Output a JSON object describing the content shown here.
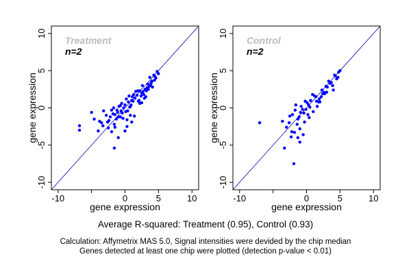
{
  "chart_data": [
    {
      "type": "scatter",
      "title": "Treatment",
      "annotation": "n=2",
      "xlabel": "gene expression",
      "ylabel": "gene expression",
      "xlim": [
        -11,
        11
      ],
      "ylim": [
        -11,
        11
      ],
      "xticks": [
        -10,
        -5,
        0,
        5,
        10
      ],
      "xtick_labels": [
        "-10",
        "",
        "0",
        "5",
        "10"
      ],
      "yticks": [
        -10,
        -5,
        0,
        5,
        10
      ],
      "ytick_labels": [
        "-10",
        "-5",
        "0",
        "5",
        "10"
      ],
      "reference_line": {
        "x": [
          -11,
          11
        ],
        "y": [
          -11,
          11
        ]
      },
      "grid": false,
      "points": {
        "x": [
          -6.8,
          -6.8,
          -5.0,
          -4.6,
          -4.0,
          -3.8,
          -3.3,
          -2.8,
          -2.5,
          -2.2,
          -1.8,
          -1.6,
          -1.5,
          -1.2,
          -1.0,
          -0.7,
          -0.4,
          0.0,
          0.3,
          0.5,
          0.8,
          1.0,
          1.4,
          1.8,
          2.0,
          2.5,
          2.9,
          3.2,
          3.5,
          3.8,
          4.0,
          4.3,
          4.6,
          4.8,
          5.0,
          -3.2,
          -2.4,
          -1.7,
          -1.1,
          -0.5,
          0.2,
          0.9,
          1.5,
          2.2,
          2.8,
          3.3,
          3.9,
          4.4,
          -3.5,
          -2.0,
          -0.9,
          0.4,
          1.6,
          2.6,
          3.6,
          4.5,
          -1.3,
          0.1,
          1.2,
          2.4,
          3.4,
          -2.6,
          -0.2,
          1.1,
          2.1,
          3.0,
          4.1,
          -1.5,
          0.6,
          2.7,
          0.7,
          1.9,
          3.1,
          -0.6,
          1.3,
          3.7,
          -1.6,
          -0.7,
          0.3,
          0.0,
          -1.0,
          2.5,
          3.9,
          -2.0,
          0.8,
          2.2,
          1.0,
          -0.3
        ],
        "y": [
          -2.4,
          -3.0,
          -0.6,
          -1.5,
          -3.1,
          -1.8,
          -2.4,
          -1.0,
          -2.7,
          -1.2,
          -0.8,
          -5.4,
          -2.6,
          -0.3,
          -1.2,
          0.3,
          -0.7,
          0.4,
          -1.6,
          0.8,
          0.2,
          1.0,
          -1.1,
          1.7,
          0.9,
          2.0,
          1.3,
          2.3,
          2.5,
          3.0,
          3.6,
          4.4,
          4.0,
          4.9,
          4.6,
          -0.4,
          -1.7,
          0.0,
          -0.6,
          0.6,
          1.2,
          0.4,
          1.3,
          2.3,
          1.8,
          2.7,
          3.3,
          3.7,
          -2.0,
          -0.3,
          0.2,
          -0.4,
          2.2,
          3.0,
          2.9,
          4.2,
          -1.5,
          -0.5,
          0.9,
          1.6,
          3.2,
          -1.9,
          0.0,
          1.5,
          1.0,
          2.5,
          2.8,
          -0.9,
          1.6,
          2.2,
          0.1,
          2.3,
          1.5,
          -0.4,
          1.8,
          4.1,
          -2.2,
          -1.2,
          -2.5,
          -3.1,
          -4.0,
          0.7,
          3.4,
          -3.2,
          -1.0,
          0.6,
          -1.9,
          -1.4
        ]
      }
    },
    {
      "type": "scatter",
      "title": "Control",
      "annotation": "n=2",
      "xlabel": "gene expression",
      "ylabel": "gene expression",
      "xlim": [
        -11,
        11
      ],
      "ylim": [
        -11,
        11
      ],
      "xticks": [
        -10,
        -5,
        0,
        5,
        10
      ],
      "xtick_labels": [
        "-10",
        "",
        "0",
        "5",
        "10"
      ],
      "yticks": [
        -10,
        -5,
        0,
        5,
        10
      ],
      "ytick_labels": [
        "-10",
        "-5",
        "0",
        "5",
        "10"
      ],
      "reference_line": {
        "x": [
          -11,
          11
        ],
        "y": [
          -11,
          11
        ]
      },
      "grid": false,
      "points": {
        "x": [
          -7.0,
          -3.3,
          -1.9,
          -3.6,
          -2.5,
          -3.0,
          -2.1,
          -1.7,
          -1.3,
          -0.8,
          -0.4,
          -0.1,
          0.3,
          0.6,
          1.0,
          1.4,
          1.8,
          2.3,
          2.7,
          3.1,
          3.5,
          3.9,
          4.3,
          4.7,
          5.0,
          -2.6,
          -1.6,
          -0.9,
          -0.2,
          0.5,
          1.2,
          1.9,
          2.6,
          3.3,
          4.0,
          4.5,
          -1.1,
          0.1,
          1.5,
          2.9,
          4.2,
          -0.6,
          0.9,
          2.2,
          3.7,
          -1.4,
          0.2,
          1.6,
          3.0,
          0.4,
          2.0,
          -0.3,
          -1.0,
          -1.8,
          -2.3,
          -1.3,
          -2.2,
          -1.0,
          -0.5,
          4.8,
          2.4
        ],
        "y": [
          -2.0,
          -5.4,
          -7.5,
          -1.8,
          -1.1,
          -2.6,
          -0.9,
          -0.3,
          -1.5,
          0.2,
          -0.7,
          -0.2,
          0.4,
          1.0,
          -0.5,
          1.5,
          0.8,
          2.4,
          1.9,
          2.8,
          3.3,
          3.0,
          4.3,
          4.1,
          5.0,
          -2.0,
          0.4,
          -0.6,
          0.9,
          0.1,
          1.6,
          1.2,
          2.1,
          3.6,
          2.4,
          3.9,
          -1.2,
          0.7,
          0.9,
          2.9,
          4.4,
          -0.2,
          1.8,
          1.5,
          3.4,
          -2.2,
          -0.9,
          0.2,
          2.1,
          -1.3,
          0.8,
          -1.9,
          -2.8,
          -3.3,
          -3.9,
          -4.0,
          -3.2,
          -4.6,
          -3.6,
          4.8,
          1.9
        ]
      }
    }
  ],
  "summary": "Average R-squared: Treatment (0.95), Control (0.93)",
  "notes": [
    "Calculation: Affymetrix MAS 5.0, Signal intensities were devided by the chip median",
    "Genes detected at least one chip were plotted (detection p-value < 0.01)"
  ],
  "colors": {
    "points": "#0000ff",
    "line": "#0000aa",
    "title": "#bbbbbb"
  }
}
